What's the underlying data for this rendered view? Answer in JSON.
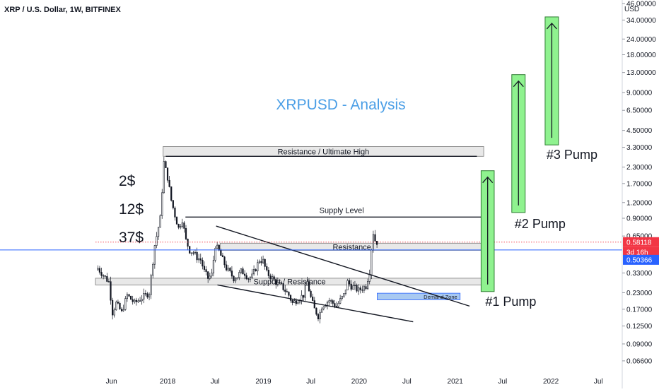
{
  "header": {
    "symbol_line": "XRP / U.S. Dollar, 1W, BITFINEX"
  },
  "chart_data": {
    "type": "candlestick",
    "title": "XRPUSD - Analysis",
    "currency_label": "USD",
    "y_scale": "log",
    "ylim": [
      0.055,
      46
    ],
    "price_ticks": [
      "46.00000",
      "34.00000",
      "24.00000",
      "18.00000",
      "13.00000",
      "9.00000",
      "6.50000",
      "4.50000",
      "3.30000",
      "2.30000",
      "1.70000",
      "1.20000",
      "0.90000",
      "0.65000",
      "0.33000",
      "0.23000",
      "0.17000",
      "0.12500",
      "0.09000",
      "0.06600"
    ],
    "time_ticks": [
      "Jun",
      "2018",
      "Jul",
      "2019",
      "Jul",
      "2020",
      "Jul",
      "2021",
      "Jul",
      "2022",
      "Jul"
    ],
    "time_range": [
      "2017-04-01",
      "2022-09-30"
    ],
    "time_tick_dates": [
      "2017-06-01",
      "2018-01-01",
      "2018-07-01",
      "2019-01-01",
      "2019-07-01",
      "2020-01-01",
      "2020-07-01",
      "2021-01-01",
      "2021-07-01",
      "2022-01-01",
      "2022-07-01"
    ],
    "last_price": {
      "label": "0.58118",
      "value": 0.58118,
      "color": "#f23645"
    },
    "countdown": {
      "label": "3d 16h",
      "color": "#f23645"
    },
    "horizontal_line": {
      "label": "0.50366",
      "value": 0.50366,
      "color": "#2962ff"
    },
    "side_labels": [
      "2$",
      "12$",
      "37$"
    ],
    "zones": [
      {
        "label": "Resistance / Ultimate High",
        "top": 3.35,
        "bottom": 2.8,
        "start": "2017-12-15",
        "end": "2021-04-20",
        "fill": "#e0e0e0"
      },
      {
        "label": "Resistance",
        "top": 0.57,
        "bottom": 0.5,
        "start": "2018-07-20",
        "end": "2021-04-20",
        "fill": "#e0e0e0"
      },
      {
        "label": "Support / Resistance",
        "top": 0.3,
        "bottom": 0.265,
        "start": "2017-04-01",
        "end": "2021-04-20",
        "fill": "#e0e0e0"
      },
      {
        "label": "Demand Zone",
        "top": 0.228,
        "bottom": 0.202,
        "start": "2020-03-10",
        "end": "2021-01-20",
        "fill": "#9ec3f0"
      }
    ],
    "levels": [
      {
        "label": "Supply Level",
        "value": 0.92,
        "start": "2018-03-10",
        "end": "2021-04-20"
      },
      {
        "label": "",
        "value": 2.8,
        "start": "2017-12-25",
        "end": "2021-03-25"
      }
    ],
    "trendlines": [
      {
        "start": {
          "date": "2018-07-05",
          "value": 0.78
        },
        "end": {
          "date": "2021-02-25",
          "value": 0.18
        }
      },
      {
        "start": {
          "date": "2018-07-10",
          "value": 0.265
        },
        "end": {
          "date": "2020-07-25",
          "value": 0.135
        }
      }
    ],
    "pumps": [
      {
        "label": "#1 Pump",
        "start": "2021-04-10",
        "end": "2021-05-30",
        "bottom": 0.235,
        "top": 2.15
      },
      {
        "label": "#2 Pump",
        "start": "2021-08-05",
        "end": "2021-09-25",
        "bottom": 1.0,
        "top": 12.5
      },
      {
        "label": "#3 Pump",
        "start": "2021-12-10",
        "end": "2022-01-30",
        "bottom": 3.45,
        "top": 36.0
      }
    ],
    "candles": {
      "start": "2017-04-10",
      "interval_days": 7,
      "anchors": [
        [
          0,
          0.36
        ],
        [
          6,
          0.28
        ],
        [
          8,
          0.16
        ],
        [
          10,
          0.19
        ],
        [
          13,
          0.16
        ],
        [
          16,
          0.22
        ],
        [
          20,
          0.19
        ],
        [
          24,
          0.21
        ],
        [
          28,
          0.23
        ],
        [
          31,
          0.55
        ],
        [
          34,
          0.9
        ],
        [
          36,
          2.5
        ],
        [
          38,
          1.9
        ],
        [
          40,
          1.25
        ],
        [
          42,
          0.95
        ],
        [
          44,
          0.75
        ],
        [
          46,
          0.88
        ],
        [
          48,
          0.6
        ],
        [
          50,
          0.5
        ],
        [
          52,
          0.48
        ],
        [
          54,
          0.44
        ],
        [
          56,
          0.42
        ],
        [
          58,
          0.34
        ],
        [
          60,
          0.3
        ],
        [
          62,
          0.32
        ],
        [
          64,
          0.55
        ],
        [
          66,
          0.49
        ],
        [
          68,
          0.42
        ],
        [
          70,
          0.36
        ],
        [
          72,
          0.33
        ],
        [
          74,
          0.3
        ],
        [
          76,
          0.31
        ],
        [
          78,
          0.34
        ],
        [
          80,
          0.33
        ],
        [
          82,
          0.3
        ],
        [
          84,
          0.31
        ],
        [
          86,
          0.36
        ],
        [
          88,
          0.42
        ],
        [
          90,
          0.41
        ],
        [
          92,
          0.33
        ],
        [
          94,
          0.31
        ],
        [
          96,
          0.29
        ],
        [
          98,
          0.27
        ],
        [
          100,
          0.26
        ],
        [
          102,
          0.24
        ],
        [
          104,
          0.22
        ],
        [
          106,
          0.19
        ],
        [
          108,
          0.2
        ],
        [
          110,
          0.21
        ],
        [
          112,
          0.22
        ],
        [
          114,
          0.28
        ],
        [
          116,
          0.21
        ],
        [
          118,
          0.17
        ],
        [
          120,
          0.15
        ],
        [
          121,
          0.16
        ],
        [
          122,
          0.18
        ],
        [
          124,
          0.19
        ],
        [
          126,
          0.2
        ],
        [
          128,
          0.19
        ],
        [
          130,
          0.18
        ],
        [
          132,
          0.2
        ],
        [
          134,
          0.22
        ],
        [
          136,
          0.28
        ],
        [
          138,
          0.26
        ],
        [
          140,
          0.25
        ],
        [
          142,
          0.24
        ],
        [
          144,
          0.25
        ],
        [
          146,
          0.26
        ],
        [
          148,
          0.34
        ],
        [
          149,
          0.52
        ],
        [
          150,
          0.69
        ],
        [
          151,
          0.6
        ],
        [
          152,
          0.58118
        ]
      ]
    }
  }
}
